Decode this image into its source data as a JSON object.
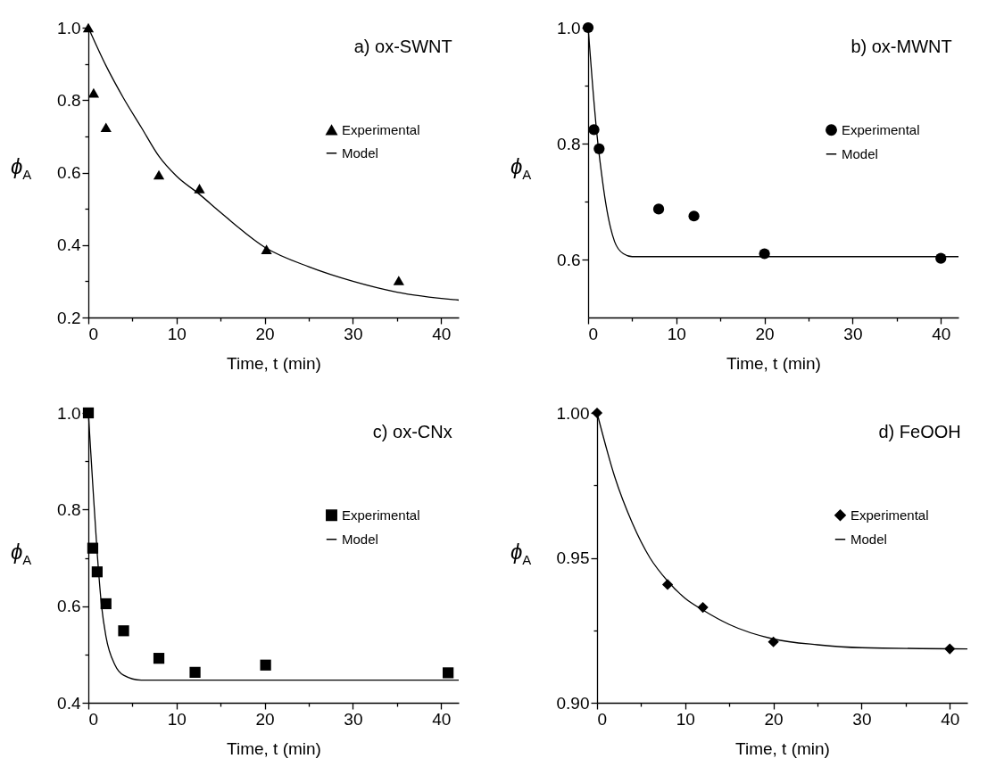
{
  "chart_data": [
    {
      "type": "scatter",
      "title": "a) ox-SWNT",
      "xlabel": "Time, t (min)",
      "ylabel": "ϕ$_{A}$",
      "xlim": [
        0,
        42
      ],
      "xticks": [
        0,
        {
          "value": 5,
          "label": null
        },
        10,
        {
          "value": 15,
          "label": null
        },
        20,
        {
          "value": 25,
          "label": null
        },
        30,
        {
          "value": 35,
          "label": null
        },
        40
      ],
      "ylim": [
        0.2,
        1.0
      ],
      "yticks": [
        0.2,
        {
          "value": 0.3,
          "label": null
        },
        0.4,
        {
          "value": 0.5,
          "label": null
        },
        0.6,
        {
          "value": 0.7,
          "label": null
        },
        0.8,
        {
          "value": 0.9,
          "label": null
        },
        {
          "value": 1.0,
          "label": "1.0"
        }
      ],
      "legend": "right",
      "series": [
        {
          "name": "Experimental",
          "type": "scatter",
          "marker": "triangle",
          "color": "#000000",
          "x": [
            0,
            0.6,
            2.0,
            8.0,
            12.6,
            20.2,
            35.2
          ],
          "values": [
            1.0,
            0.82,
            0.725,
            0.594,
            0.556,
            0.388,
            0.302
          ]
        },
        {
          "name": "Model",
          "type": "line",
          "color": "#000000",
          "x": [
            0,
            2,
            4,
            6,
            8,
            10,
            12.6,
            15,
            20,
            25,
            30,
            35,
            42
          ],
          "values": [
            1.0,
            0.895,
            0.805,
            0.725,
            0.645,
            0.59,
            0.54,
            0.49,
            0.394,
            0.34,
            0.3,
            0.27,
            0.248
          ]
        }
      ]
    },
    {
      "type": "scatter",
      "title": "b) ox-MWNT",
      "xlabel": "Time, t (min)",
      "ylabel": "ϕ$_{A}$",
      "xlim": [
        0,
        42
      ],
      "xticks": [
        0,
        {
          "value": 5,
          "label": null
        },
        10,
        {
          "value": 15,
          "label": null
        },
        20,
        {
          "value": 25,
          "label": null
        },
        30,
        {
          "value": 35,
          "label": null
        },
        40
      ],
      "ylim": [
        0.5,
        1.0
      ],
      "yticks": [
        0.6,
        {
          "value": 0.7,
          "label": null
        },
        0.8,
        {
          "value": 0.9,
          "label": null
        },
        {
          "value": 1.0,
          "label": "1.0"
        }
      ],
      "legend": "right",
      "series": [
        {
          "name": "Experimental",
          "type": "scatter",
          "marker": "circle",
          "color": "#000000",
          "x": [
            0,
            0.66,
            1.25,
            8.0,
            12.0,
            20,
            40
          ],
          "values": [
            1.0,
            0.824,
            0.791,
            0.687,
            0.675,
            0.61,
            0.602
          ]
        },
        {
          "name": "Model",
          "type": "line",
          "color": "#000000",
          "x": [
            0,
            0.5,
            1,
            1.5,
            2,
            3,
            4,
            5,
            42
          ],
          "values": [
            1.0,
            0.902,
            0.816,
            0.751,
            0.697,
            0.631,
            0.61,
            0.605,
            0.605
          ]
        }
      ]
    },
    {
      "type": "scatter",
      "title": "c) ox-CNx",
      "xlabel": "Time, t (min)",
      "ylabel": "ϕ$_{A}$",
      "xlim": [
        0,
        42
      ],
      "xticks": [
        0,
        {
          "value": 5,
          "label": null
        },
        10,
        {
          "value": 15,
          "label": null
        },
        20,
        {
          "value": 25,
          "label": null
        },
        30,
        {
          "value": 35,
          "label": null
        },
        40
      ],
      "ylim": [
        0.4,
        1.0
      ],
      "yticks": [
        0.4,
        {
          "value": 0.5,
          "label": null
        },
        0.6,
        {
          "value": 0.7,
          "label": null
        },
        0.8,
        {
          "value": 0.9,
          "label": null
        },
        {
          "value": 1.0,
          "label": "1.0"
        }
      ],
      "legend": "right",
      "series": [
        {
          "name": "Experimental",
          "type": "scatter",
          "marker": "square",
          "color": "#000000",
          "x": [
            0,
            0.5,
            1,
            2.0,
            4.0,
            8.0,
            12.1,
            20.1,
            40.8
          ],
          "values": [
            1.0,
            0.72,
            0.671,
            0.605,
            0.549,
            0.492,
            0.463,
            0.478,
            0.462
          ]
        },
        {
          "name": "Model",
          "type": "line",
          "color": "#000000",
          "x": [
            0,
            0.5,
            1,
            1.5,
            2,
            3,
            4,
            6,
            42
          ],
          "values": [
            1.0,
            0.852,
            0.711,
            0.6,
            0.537,
            0.479,
            0.457,
            0.447,
            0.447
          ]
        }
      ]
    },
    {
      "type": "scatter",
      "title": "d) FeOOH",
      "xlabel": "Time, t (min)",
      "ylabel": "ϕ$_{A}$",
      "xlim": [
        0,
        42
      ],
      "xticks": [
        0,
        {
          "value": 5,
          "label": null
        },
        10,
        {
          "value": 15,
          "label": null
        },
        20,
        {
          "value": 25,
          "label": null
        },
        30,
        {
          "value": 35,
          "label": null
        },
        40
      ],
      "ylim": [
        0.9,
        1.0
      ],
      "yticks": [
        {
          "value": 0.9,
          "label": "0.90"
        },
        {
          "value": 0.925,
          "label": null
        },
        {
          "value": 0.95,
          "label": "0.95"
        },
        {
          "value": 0.975,
          "label": null
        },
        {
          "value": 1.0,
          "label": "1.00"
        }
      ],
      "legend": "right",
      "series": [
        {
          "name": "Experimental",
          "type": "scatter",
          "marker": "diamond",
          "color": "#000000",
          "x": [
            0,
            8.0,
            12,
            20,
            40
          ],
          "values": [
            1.0,
            0.9408,
            0.9329,
            0.921,
            0.9186
          ]
        },
        {
          "name": "Model",
          "type": "line",
          "color": "#000000",
          "x": [
            0,
            2,
            4,
            6,
            8,
            10,
            12,
            15,
            20,
            25,
            30,
            42
          ],
          "values": [
            1.0,
            0.978,
            0.962,
            0.95,
            0.942,
            0.936,
            0.932,
            0.927,
            0.922,
            0.92,
            0.919,
            0.9186
          ]
        }
      ]
    }
  ]
}
